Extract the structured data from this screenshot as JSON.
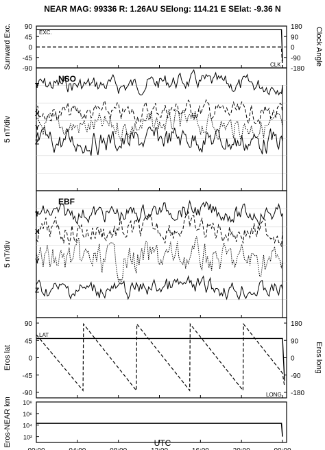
{
  "header": {
    "title": "NEAR MAG: 99336  R: 1.26AU  SElong: 114.21 E  SElat:  -9.36 N"
  },
  "panels": {
    "p1": {
      "left_label": "Sunward Exc.",
      "right_label": "Clock Angle",
      "tag_left": "EXC.",
      "tag_right": "CLK",
      "left_ticks": [
        "90",
        "45",
        "0",
        "-45",
        "-90"
      ],
      "right_ticks": [
        "180",
        "90",
        "0",
        "-90",
        "-180"
      ]
    },
    "p2": {
      "title": "NSO",
      "ylabel": "5 nT/div",
      "series": [
        "T",
        "X",
        "Y",
        "Z"
      ]
    },
    "p3": {
      "title": "EBF",
      "ylabel": "5 nT/div",
      "series": [
        "T",
        "X",
        "Y",
        "Z"
      ]
    },
    "p4": {
      "left_label": "Eros lat",
      "right_label": "Eros long",
      "tag_left": "LAT",
      "tag_right": "LONG",
      "left_ticks": [
        "90",
        "45",
        "0",
        "-45",
        "-90"
      ],
      "right_ticks": [
        "180",
        "90",
        "0",
        "-90",
        "-180"
      ]
    },
    "p5": {
      "left_label": "Eros-NEAR km",
      "ticks": [
        "10⁸",
        "10⁶",
        "10⁴",
        "10²"
      ]
    }
  },
  "xaxis": {
    "label": "UTC",
    "ticks": [
      "00:00",
      "04:00",
      "08:00",
      "12:00",
      "16:00",
      "20:00",
      "00:00"
    ]
  },
  "chart_data": [
    {
      "type": "line",
      "name_panel": "Sunward Exc. / Clock Angle",
      "x_hours": [
        0,
        24
      ],
      "series": [
        {
          "name": "EXC.",
          "style": "solid",
          "values": [
            [
              0,
              75
            ],
            [
              23.9,
              75
            ],
            [
              24,
              -60
            ]
          ]
        },
        {
          "name": "CLK",
          "style": "dashed",
          "values": [
            [
              0,
              0
            ],
            [
              23.9,
              0
            ],
            [
              24,
              -170
            ]
          ]
        }
      ],
      "ylim": [
        -90,
        90
      ]
    },
    {
      "type": "line",
      "name_panel": "NSO",
      "series": [
        {
          "name": "T",
          "style": "solid",
          "level": 0.86,
          "amp": 0.05
        },
        {
          "name": "X",
          "style": "dashed",
          "level": 0.63,
          "amp": 0.06
        },
        {
          "name": "Y",
          "style": "dotted",
          "level": 0.52,
          "amp": 0.07
        },
        {
          "name": "Z",
          "style": "solid",
          "level": 0.4,
          "amp": 0.07
        }
      ]
    },
    {
      "type": "line",
      "name_panel": "EBF",
      "series": [
        {
          "name": "T",
          "style": "solid",
          "level": 0.82,
          "amp": 0.05
        },
        {
          "name": "X",
          "style": "dashed",
          "level": 0.68,
          "amp": 0.07
        },
        {
          "name": "Y",
          "style": "dotted",
          "level": 0.45,
          "amp": 0.09
        },
        {
          "name": "Z",
          "style": "solid",
          "level": 0.22,
          "amp": 0.05
        }
      ]
    },
    {
      "type": "line",
      "name_panel": "Eros lat / long",
      "series": [
        {
          "name": "LAT",
          "style": "solid",
          "values": [
            [
              0,
              50
            ],
            [
              24,
              50
            ],
            [
              24.2,
              -60
            ]
          ]
        },
        {
          "name": "LONG",
          "style": "dashed",
          "sawtooth_peaks_hours": [
            4.6,
            9.8,
            15.0,
            20.2
          ],
          "ylim": [
            -180,
            180
          ]
        }
      ],
      "ylim": [
        -90,
        90
      ]
    },
    {
      "type": "line",
      "name_panel": "Eros-NEAR km",
      "scale": "log",
      "series": [
        {
          "name": "distance",
          "style": "solid",
          "values": [
            [
              0,
              20000
            ],
            [
              23.9,
              20000
            ],
            [
              24,
              100
            ]
          ]
        }
      ],
      "ylim": [
        10,
        100000000
      ]
    }
  ]
}
